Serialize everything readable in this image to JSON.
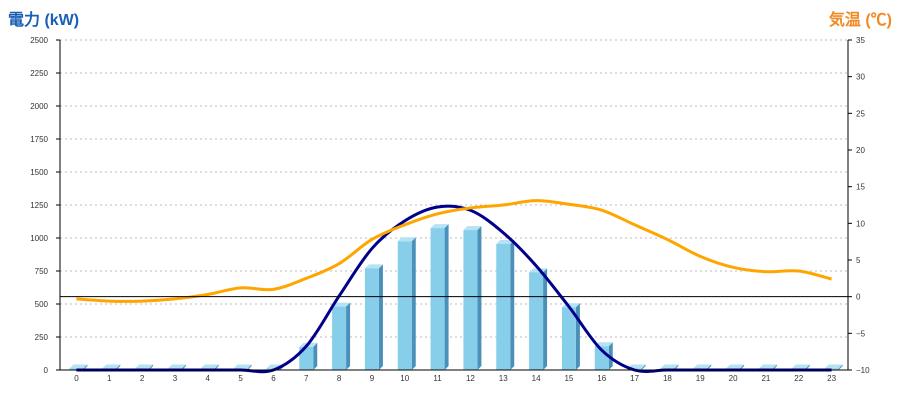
{
  "chart_data": {
    "type": "bar",
    "left_axis_title": "電力 (kW)",
    "right_axis_title": "気温 (℃)",
    "categories": [
      "0",
      "1",
      "2",
      "3",
      "4",
      "5",
      "6",
      "7",
      "8",
      "9",
      "10",
      "11",
      "12",
      "13",
      "14",
      "15",
      "16",
      "17",
      "18",
      "19",
      "20",
      "21",
      "22",
      "23"
    ],
    "left_ticks": [
      "0",
      "250",
      "500",
      "750",
      "1000",
      "1250",
      "1500",
      "1750",
      "2000",
      "2250",
      "2500"
    ],
    "right_ticks": [
      "−10",
      "−5",
      "0",
      "5",
      "10",
      "15",
      "20",
      "25",
      "30",
      "35"
    ],
    "ylim_left": [
      0,
      2500
    ],
    "ylim_right": [
      -10,
      35
    ],
    "grid": true,
    "series": [
      {
        "kind": "bar",
        "axis": "left",
        "color": "#87ceeb",
        "values": [
          0,
          0,
          0,
          0,
          0,
          0,
          0,
          175,
          480,
          770,
          975,
          1075,
          1060,
          955,
          740,
          475,
          180,
          0,
          0,
          0,
          0,
          0,
          0,
          0
        ]
      },
      {
        "kind": "line",
        "axis": "left",
        "color": "#00008b",
        "values": [
          0,
          0,
          0,
          0,
          0,
          0,
          0,
          180,
          560,
          920,
          1130,
          1235,
          1210,
          1040,
          790,
          480,
          150,
          0,
          0,
          0,
          0,
          0,
          0,
          0
        ]
      },
      {
        "kind": "line",
        "axis": "right",
        "color": "#ffa500",
        "values": [
          -0.3,
          -0.6,
          -0.6,
          -0.3,
          0.3,
          1.2,
          1.0,
          2.5,
          4.5,
          7.8,
          9.8,
          11.3,
          12.1,
          12.5,
          13.1,
          12.6,
          11.8,
          9.8,
          7.8,
          5.5,
          4.0,
          3.4,
          3.5,
          2.4
        ]
      }
    ]
  }
}
